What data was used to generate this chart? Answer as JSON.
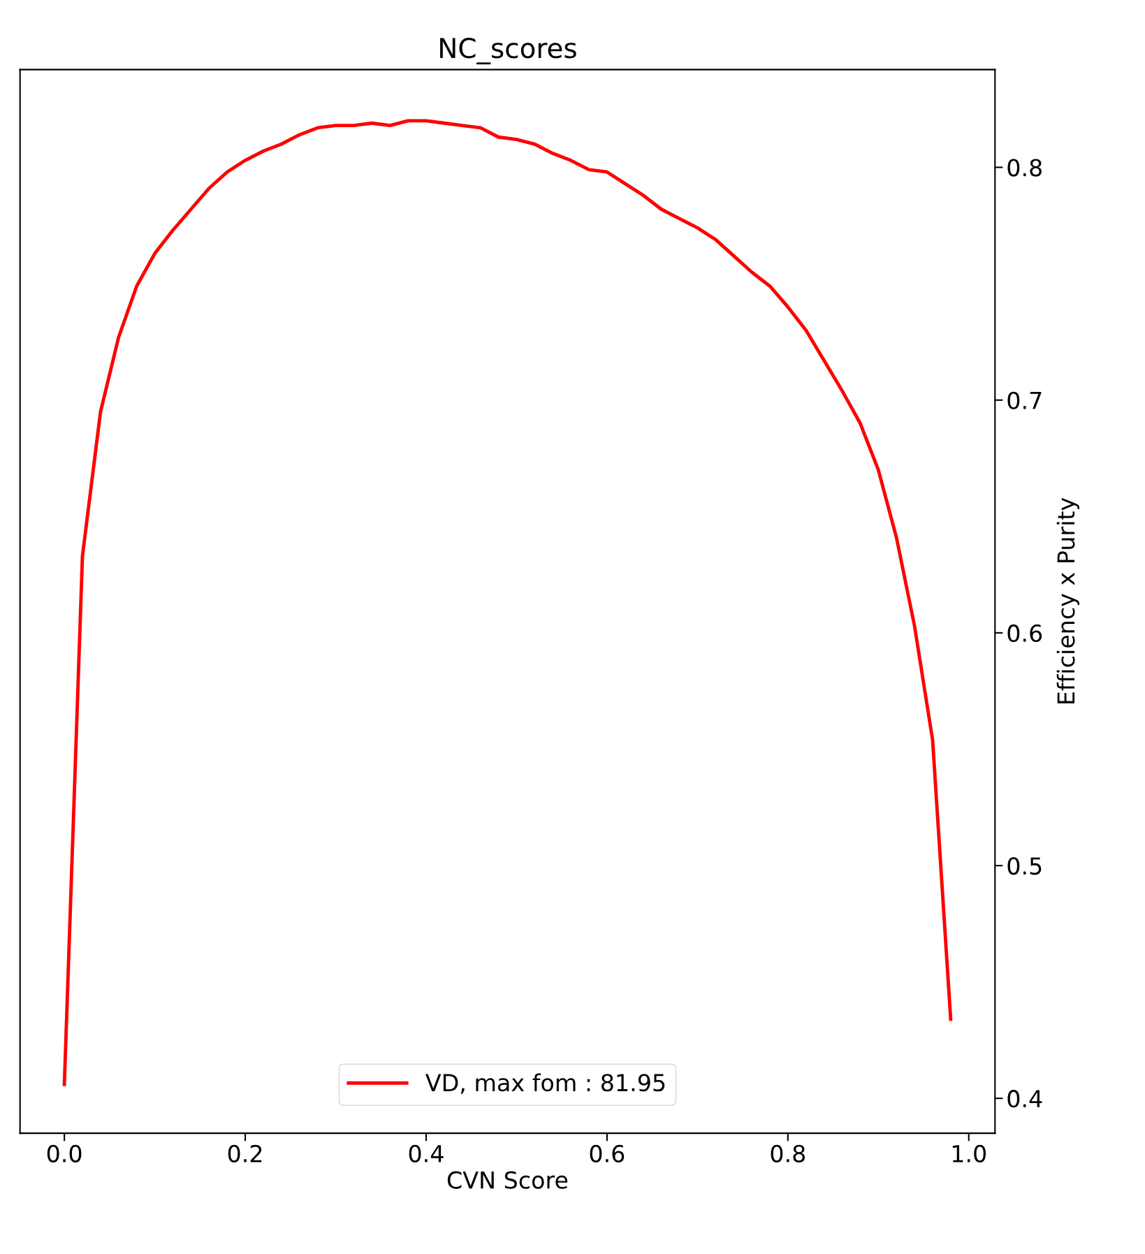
{
  "chart_data": {
    "type": "line",
    "title": "NC_scores",
    "xlabel": "CVN Score",
    "ylabel": "Efficiency x Purity",
    "x": [
      0,
      0.02,
      0.04,
      0.06,
      0.08,
      0.1,
      0.12,
      0.14,
      0.16,
      0.18,
      0.2,
      0.22,
      0.24,
      0.26,
      0.28,
      0.3,
      0.32,
      0.34,
      0.36,
      0.38,
      0.4,
      0.42,
      0.44,
      0.46,
      0.48,
      0.5,
      0.52,
      0.54,
      0.56,
      0.58,
      0.6,
      0.62,
      0.64,
      0.66,
      0.68,
      0.7,
      0.72,
      0.74,
      0.76,
      0.78,
      0.8,
      0.82,
      0.84,
      0.86,
      0.88,
      0.9,
      0.92,
      0.94,
      0.96,
      0.98
    ],
    "series": [
      {
        "name": "VD, max fom : 81.95",
        "color": "#ff0000",
        "values": [
          0.406,
          0.633,
          0.695,
          0.727,
          0.749,
          0.763,
          0.773,
          0.782,
          0.791,
          0.798,
          0.803,
          0.807,
          0.81,
          0.814,
          0.817,
          0.818,
          0.818,
          0.819,
          0.818,
          0.82,
          0.82,
          0.819,
          0.818,
          0.817,
          0.813,
          0.812,
          0.81,
          0.806,
          0.803,
          0.799,
          0.798,
          0.793,
          0.788,
          0.782,
          0.778,
          0.774,
          0.769,
          0.762,
          0.755,
          0.749,
          0.74,
          0.73,
          0.717,
          0.704,
          0.69,
          0.67,
          0.641,
          0.603,
          0.554,
          0.434
        ]
      }
    ],
    "xlim": [
      -0.049,
      1.029
    ],
    "ylim": [
      0.385,
      0.842
    ],
    "xticks": [
      {
        "value": 0,
        "label": "0.0"
      },
      0.2,
      0.4,
      0.6,
      0.8,
      {
        "value": 1,
        "label": "1.0"
      }
    ],
    "yticks": [
      0.4,
      0.5,
      0.6,
      0.7,
      0.8
    ],
    "grid": false,
    "legend": "bottom",
    "marker": "none",
    "line_style": "solid"
  }
}
